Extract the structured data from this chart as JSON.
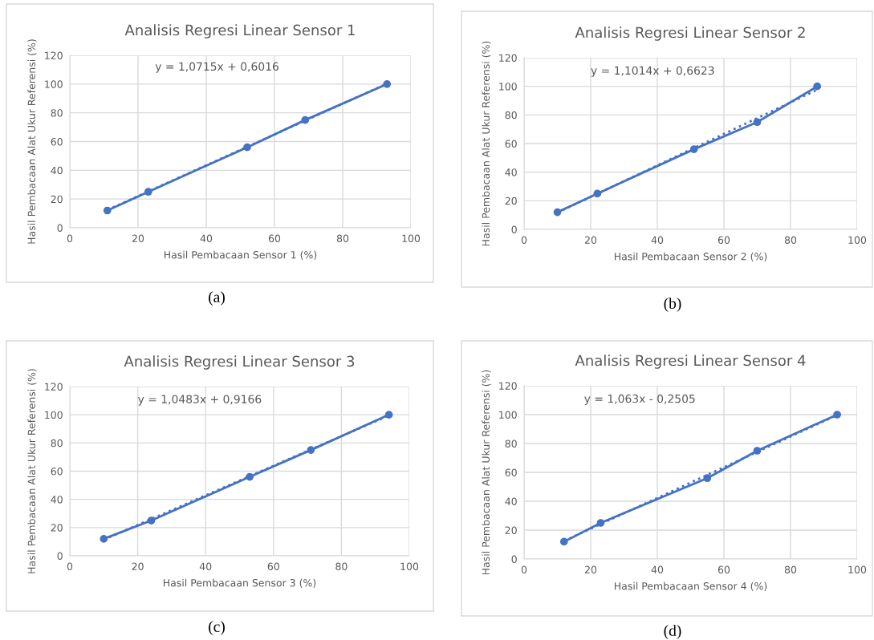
{
  "chart_data": [
    {
      "type": "line",
      "title": "Analisis Regresi Linear Sensor 1",
      "xlabel": "Hasil Pembacaan Sensor 1 (%)",
      "ylabel": "Hasil Pembacaan Alat Ukur Referensi (%)",
      "series": [
        {
          "color": "#4472c4",
          "marker": "circle",
          "line_style": "solid",
          "x": [
            11,
            23,
            52,
            69,
            93
          ],
          "values": [
            12,
            25,
            56,
            75,
            100
          ]
        },
        {
          "type": "line",
          "color": "#4472c4",
          "marker": "none",
          "line_style": "dotted",
          "x": [
            11,
            93
          ],
          "values": [
            12.4,
            100.3
          ]
        }
      ],
      "xlim": [
        0,
        100
      ],
      "ylim": [
        0,
        120
      ],
      "xticks": [
        0,
        20,
        40,
        60,
        80,
        100
      ],
      "yticks": [
        0,
        20,
        40,
        60,
        80,
        100,
        120
      ],
      "grid": true,
      "legend": false,
      "annotations": [
        "y = 1,0715x + 0,6016",
        "(a)"
      ]
    },
    {
      "type": "line",
      "title": "Analisis Regresi Linear Sensor 2",
      "xlabel": "Hasil Pembacaan Sensor 2 (%)",
      "ylabel": "Hasil Pembacaan Alat Ukur Referensi (%)",
      "series": [
        {
          "color": "#4472c4",
          "marker": "circle",
          "line_style": "solid",
          "x": [
            10,
            22,
            51,
            70,
            88
          ],
          "values": [
            12,
            25,
            56,
            75,
            100
          ]
        },
        {
          "type": "line",
          "color": "#4472c4",
          "marker": "none",
          "line_style": "dotted",
          "x": [
            10,
            88
          ],
          "values": [
            11.7,
            97.6
          ]
        }
      ],
      "xlim": [
        0,
        100
      ],
      "ylim": [
        0,
        120
      ],
      "xticks": [
        0,
        20,
        40,
        60,
        80,
        100
      ],
      "yticks": [
        0,
        20,
        40,
        60,
        80,
        100,
        120
      ],
      "grid": true,
      "legend": false,
      "annotations": [
        "y = 1,1014x + 0,6623",
        "(b)"
      ]
    },
    {
      "type": "line",
      "title": "Analisis Regresi Linear Sensor 3",
      "xlabel": "Hasil Pembacaan Sensor 3 (%)",
      "ylabel": "Hasil Pembacaan Alat Ukur Referensi (%)",
      "series": [
        {
          "color": "#4472c4",
          "marker": "circle",
          "line_style": "solid",
          "x": [
            10,
            24,
            53,
            71,
            94
          ],
          "values": [
            12,
            25,
            56,
            75,
            100
          ]
        },
        {
          "type": "line",
          "color": "#4472c4",
          "marker": "none",
          "line_style": "dotted",
          "x": [
            10,
            94
          ],
          "values": [
            11.4,
            99.5
          ]
        }
      ],
      "xlim": [
        0,
        100
      ],
      "ylim": [
        0,
        120
      ],
      "xticks": [
        0,
        20,
        40,
        60,
        80,
        100
      ],
      "yticks": [
        0,
        20,
        40,
        60,
        80,
        100,
        120
      ],
      "grid": true,
      "legend": false,
      "annotations": [
        "y = 1,0483x + 0,9166",
        "(c)"
      ]
    },
    {
      "type": "line",
      "title": "Analisis Regresi Linear Sensor 4",
      "xlabel": "Hasil Pembacaan Sensor 4 (%)",
      "ylabel": "Hasil Pembacaan Alat Ukur Referensi (%)",
      "series": [
        {
          "color": "#4472c4",
          "marker": "circle",
          "line_style": "solid",
          "x": [
            12,
            23,
            55,
            70,
            94
          ],
          "values": [
            12,
            25,
            56,
            75,
            100
          ]
        },
        {
          "type": "line",
          "color": "#4472c4",
          "marker": "none",
          "line_style": "dotted",
          "x": [
            12,
            94
          ],
          "values": [
            12.5,
            99.7
          ]
        }
      ],
      "xlim": [
        0,
        100
      ],
      "ylim": [
        0,
        120
      ],
      "xticks": [
        0,
        20,
        40,
        60,
        80,
        100
      ],
      "yticks": [
        0,
        20,
        40,
        60,
        80,
        100,
        120
      ],
      "grid": true,
      "legend": false,
      "annotations": [
        "y = 1,063x - 0,2505",
        "(d)"
      ]
    }
  ]
}
